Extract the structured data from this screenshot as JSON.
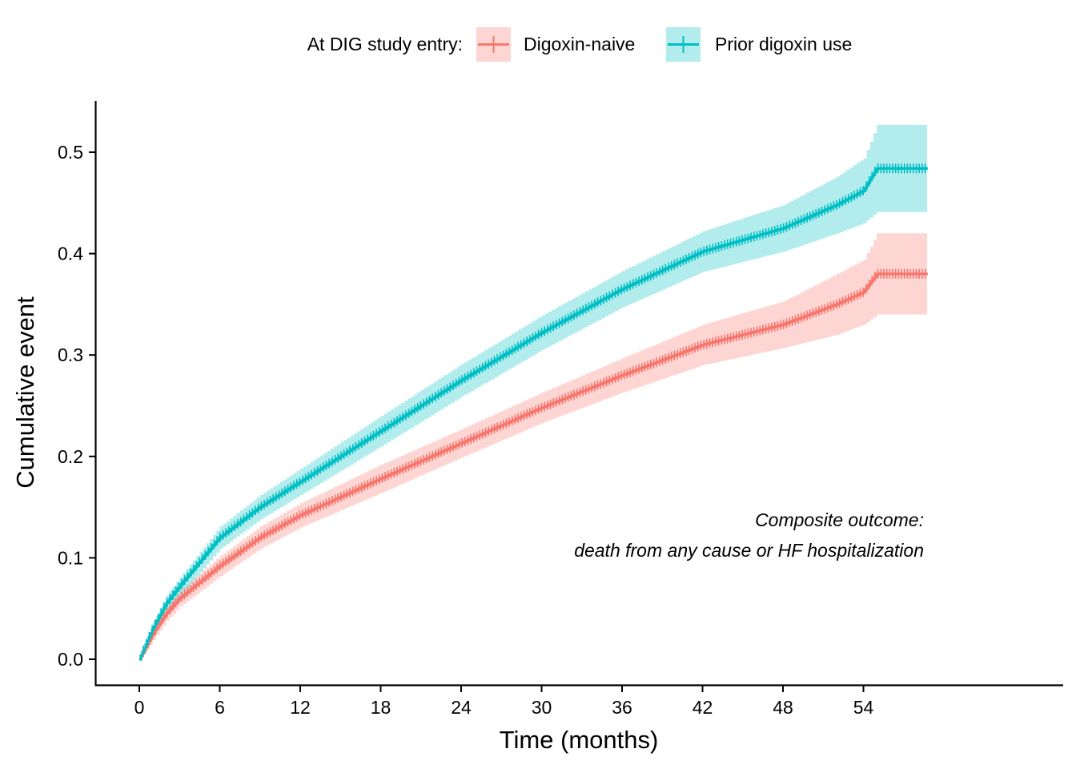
{
  "chart_data": {
    "type": "line",
    "xlabel": "Time (months)",
    "ylabel": "Cumulative event",
    "xlim": [
      0,
      59
    ],
    "ylim": [
      0,
      0.5
    ],
    "xticks": [
      0,
      6,
      12,
      18,
      24,
      30,
      36,
      42,
      48,
      54
    ],
    "yticks": [
      "0.0",
      "0.1",
      "0.2",
      "0.3",
      "0.4",
      "0.5"
    ],
    "legend": {
      "title": "At DIG study entry:",
      "position": "top",
      "entries": [
        "Digoxin-naive",
        "Prior digoxin use"
      ]
    },
    "annotation": {
      "line1": "Composite outcome:",
      "line2": "death from any cause or HF hospitalization"
    },
    "series": [
      {
        "name": "Digoxin-naive",
        "color": "#F8766D",
        "x": [
          0,
          1,
          2,
          3,
          6,
          9,
          12,
          18,
          24,
          30,
          36,
          42,
          48,
          52,
          54,
          55,
          58.8
        ],
        "y": [
          0,
          0.025,
          0.045,
          0.06,
          0.092,
          0.12,
          0.142,
          0.178,
          0.213,
          0.248,
          0.28,
          0.31,
          0.33,
          0.35,
          0.362,
          0.38,
          0.38
        ],
        "lower": [
          0,
          0.019,
          0.038,
          0.052,
          0.082,
          0.109,
          0.13,
          0.164,
          0.199,
          0.233,
          0.263,
          0.29,
          0.307,
          0.32,
          0.33,
          0.34,
          0.34
        ],
        "upper": [
          0,
          0.031,
          0.052,
          0.068,
          0.102,
          0.131,
          0.154,
          0.192,
          0.227,
          0.263,
          0.297,
          0.33,
          0.353,
          0.38,
          0.394,
          0.42,
          0.42
        ]
      },
      {
        "name": "Prior digoxin use",
        "color": "#00BFC4",
        "x": [
          0,
          1,
          2,
          3,
          6,
          9,
          12,
          18,
          24,
          30,
          36,
          42,
          48,
          52,
          54,
          55,
          58.8
        ],
        "y": [
          0,
          0.03,
          0.055,
          0.072,
          0.12,
          0.15,
          0.175,
          0.225,
          0.275,
          0.322,
          0.365,
          0.402,
          0.425,
          0.448,
          0.462,
          0.484,
          0.484
        ],
        "lower": [
          0,
          0.024,
          0.047,
          0.063,
          0.109,
          0.138,
          0.162,
          0.21,
          0.259,
          0.305,
          0.347,
          0.382,
          0.402,
          0.42,
          0.43,
          0.441,
          0.441
        ],
        "upper": [
          0,
          0.036,
          0.063,
          0.081,
          0.131,
          0.162,
          0.188,
          0.24,
          0.291,
          0.339,
          0.383,
          0.422,
          0.448,
          0.476,
          0.494,
          0.527,
          0.527
        ]
      }
    ]
  }
}
